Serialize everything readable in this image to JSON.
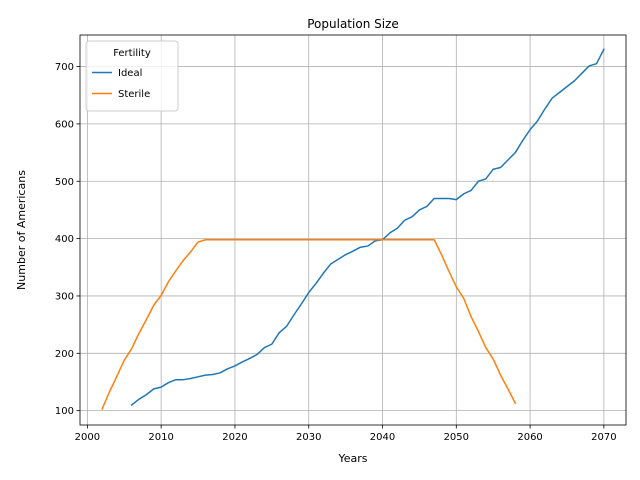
{
  "chart_data": {
    "type": "line",
    "title": "Population Size",
    "xlabel": "Years",
    "ylabel": "Number of Americans",
    "xlim": [
      1999,
      2073
    ],
    "ylim": [
      75,
      755
    ],
    "xticks": [
      2000,
      2010,
      2020,
      2030,
      2040,
      2050,
      2060,
      2070
    ],
    "yticks": [
      100,
      200,
      300,
      400,
      500,
      600,
      700
    ],
    "grid": true,
    "legend": {
      "title": "Fertility",
      "placement": "top-left"
    },
    "series": [
      {
        "name": "Ideal",
        "color": "#1f77b4",
        "x": [
          2006,
          2007,
          2008,
          2009,
          2010,
          2011,
          2012,
          2013,
          2014,
          2015,
          2016,
          2017,
          2018,
          2019,
          2020,
          2021,
          2022,
          2023,
          2024,
          2025,
          2026,
          2027,
          2028,
          2029,
          2030,
          2031,
          2032,
          2033,
          2034,
          2035,
          2036,
          2037,
          2038,
          2039,
          2040,
          2041,
          2042,
          2043,
          2044,
          2045,
          2046,
          2047,
          2048,
          2049,
          2050,
          2051,
          2052,
          2053,
          2054,
          2055,
          2056,
          2057,
          2058,
          2059,
          2060,
          2061,
          2062,
          2063,
          2064,
          2065,
          2066,
          2067,
          2068,
          2069,
          2070
        ],
        "y": [
          110,
          120,
          128,
          138,
          141,
          149,
          154,
          154,
          156,
          159,
          162,
          163,
          166,
          173,
          178,
          185,
          191,
          198,
          210,
          216,
          236,
          247,
          267,
          286,
          306,
          322,
          340,
          356,
          364,
          372,
          378,
          385,
          387,
          396,
          398,
          410,
          418,
          432,
          438,
          450,
          456,
          470,
          470,
          470,
          468,
          478,
          484,
          500,
          504,
          521,
          524,
          537,
          550,
          571,
          590,
          605,
          626,
          645,
          655,
          665,
          675,
          688,
          701,
          705,
          730
        ]
      },
      {
        "name": "Sterile",
        "color": "#ff7f0e",
        "x": [
          2002,
          2003,
          2004,
          2005,
          2006,
          2007,
          2008,
          2009,
          2010,
          2011,
          2012,
          2013,
          2014,
          2015,
          2016,
          2017,
          2018,
          2019,
          2020,
          2021,
          2022,
          2023,
          2024,
          2025,
          2026,
          2027,
          2028,
          2029,
          2030,
          2031,
          2032,
          2033,
          2034,
          2035,
          2036,
          2037,
          2038,
          2039,
          2040,
          2041,
          2042,
          2043,
          2044,
          2045,
          2046,
          2047,
          2048,
          2049,
          2050,
          2051,
          2052,
          2053,
          2054,
          2055,
          2056,
          2057,
          2058
        ],
        "y": [
          103,
          133,
          160,
          188,
          208,
          235,
          259,
          284,
          301,
          325,
          344,
          362,
          377,
          394,
          398,
          398,
          398,
          398,
          398,
          398,
          398,
          398,
          398,
          398,
          398,
          398,
          398,
          398,
          398,
          398,
          398,
          398,
          398,
          398,
          398,
          398,
          398,
          398,
          398,
          398,
          398,
          398,
          398,
          398,
          398,
          398,
          372,
          343,
          316,
          296,
          264,
          238,
          210,
          190,
          162,
          138,
          113
        ]
      }
    ]
  }
}
